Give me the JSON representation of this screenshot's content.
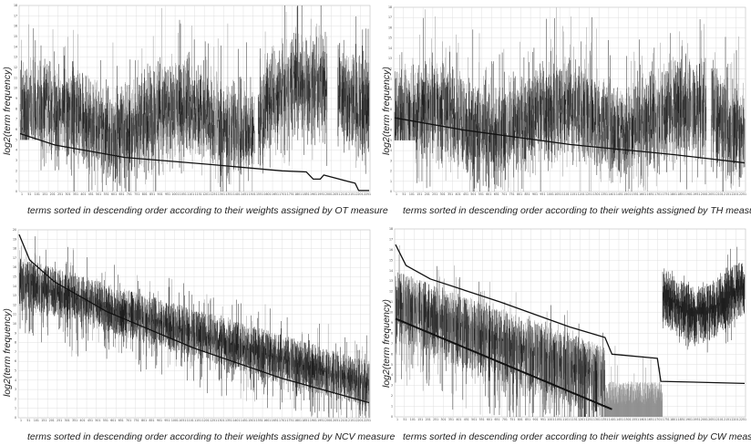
{
  "chart_data": [
    {
      "type": "line",
      "xlabel": "terms sorted in descending order according to their weights assigned by OT measure",
      "ylabel": "log2(term frequency)",
      "ylim": [
        0,
        18
      ],
      "grid": true,
      "profile": "flat",
      "weight_curve": [
        [
          0,
          5.6
        ],
        [
          0.1,
          4.5
        ],
        [
          0.3,
          3.3
        ],
        [
          0.55,
          2.6
        ],
        [
          0.75,
          2.0
        ],
        [
          0.82,
          1.9
        ],
        [
          0.84,
          1.2
        ],
        [
          0.86,
          1.2
        ],
        [
          0.87,
          1.6
        ],
        [
          0.96,
          0.8
        ],
        [
          0.97,
          0.1
        ],
        [
          1.0,
          0.1
        ]
      ],
      "gap_ranges": [
        [
          0.672,
          0.682
        ],
        [
          0.88,
          0.91
        ]
      ]
    },
    {
      "type": "line",
      "xlabel": "terms sorted in descending order according to their weights assigned by TH measure",
      "ylabel": "log2(term frequency)",
      "ylim": [
        0,
        18
      ],
      "grid": true,
      "profile": "flat",
      "weight_curve": [
        [
          0,
          7.2
        ],
        [
          0.2,
          6.0
        ],
        [
          0.5,
          4.6
        ],
        [
          0.8,
          3.6
        ],
        [
          1.0,
          2.8
        ]
      ],
      "gap_ranges": [
        [
          0.89,
          0.905
        ]
      ]
    },
    {
      "type": "line",
      "xlabel": "terms sorted in descending order according to their weights assigned by NCV measure",
      "ylabel": "log2(term frequency)",
      "ylim": [
        0,
        20
      ],
      "grid": true,
      "profile": "declining",
      "weight_curve": [
        [
          0,
          19.5
        ],
        [
          0.03,
          16.8
        ],
        [
          0.1,
          14.5
        ],
        [
          0.25,
          11.3
        ],
        [
          0.5,
          7.4
        ],
        [
          0.75,
          4.2
        ],
        [
          1.0,
          1.6
        ]
      ],
      "gap_ranges": []
    },
    {
      "type": "line",
      "xlabel": "terms sorted in descending order according to their weights assigned by CW measure",
      "ylabel": "log2(term frequency)",
      "ylim": [
        0,
        18
      ],
      "grid": true,
      "profile": "split",
      "weight_curve": [
        [
          0,
          16.5
        ],
        [
          0.03,
          14.5
        ],
        [
          0.1,
          13.2
        ],
        [
          0.3,
          11.0
        ],
        [
          0.5,
          8.6
        ],
        [
          0.6,
          7.6
        ],
        [
          0.62,
          6.0
        ],
        [
          0.75,
          5.6
        ],
        [
          0.76,
          3.4
        ],
        [
          1.0,
          3.2
        ]
      ],
      "gap_ranges": []
    }
  ]
}
